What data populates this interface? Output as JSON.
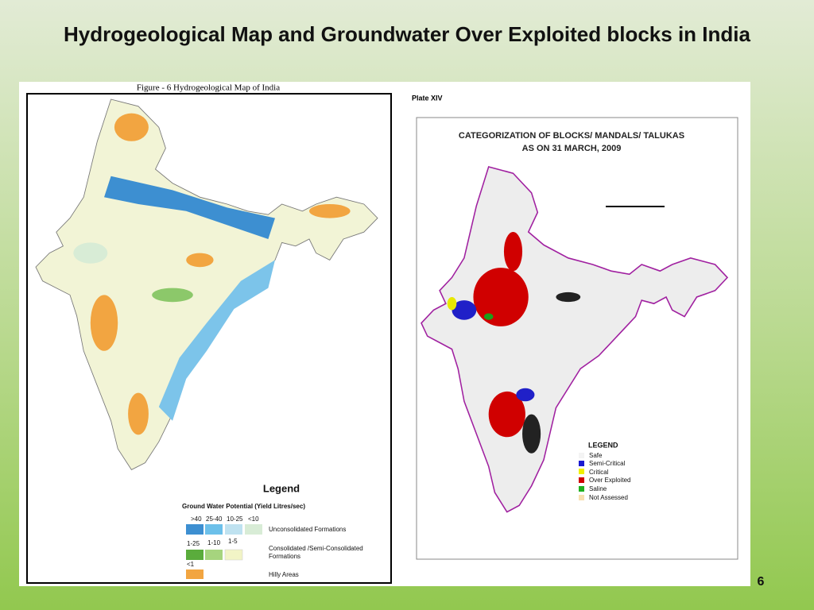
{
  "header": {
    "title": "Hydrogeological Map and Groundwater Over Exploited blocks in India"
  },
  "left_map": {
    "caption": "Figure - 6 Hydrogeological Map of India",
    "legend": {
      "title": "Legend",
      "subtitle": "Ground Water Potential (Yield Litres/sec)",
      "row1": {
        "labels": [
          ">40",
          "25-40",
          "10-25",
          "<10"
        ],
        "text": "Unconsolidated Formations"
      },
      "row2": {
        "labels": [
          "1-25",
          "1-10",
          "1-5"
        ],
        "text": [
          "Consolidated /Semi-Consolidated",
          "Formations"
        ]
      },
      "row3": {
        "labels": [
          "<1"
        ],
        "text": "Hilly Areas"
      }
    }
  },
  "right_map": {
    "plate": "Plate XIV",
    "title": [
      "CATEGORIZATION OF BLOCKS/ MANDALS/ TALUKAS",
      "AS ON 31 MARCH, 2009"
    ],
    "legend": {
      "title": "LEGEND",
      "items": [
        "Safe",
        "Semi-Critical",
        "Critical",
        "Over Exploited",
        "Saline",
        "Not Assessed"
      ]
    }
  },
  "footer": {
    "page": "6"
  }
}
